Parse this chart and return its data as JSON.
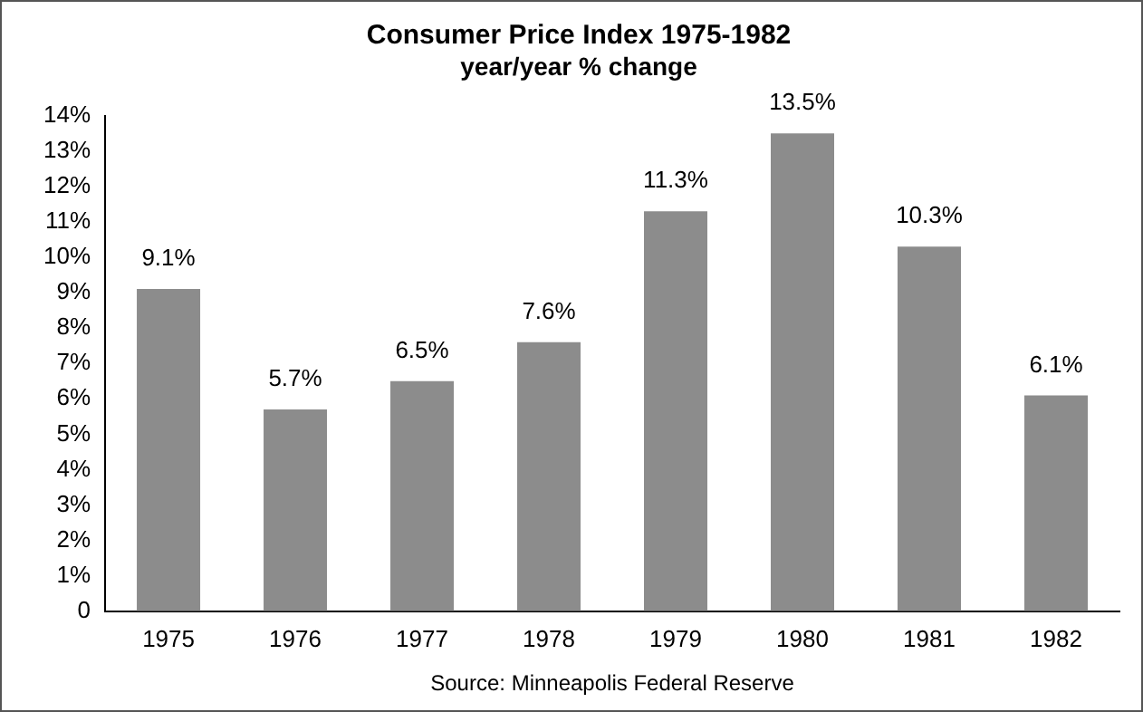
{
  "chart_data": {
    "type": "bar",
    "title": "Consumer Price Index 1975-1982",
    "subtitle": "year/year % change",
    "categories": [
      "1975",
      "1976",
      "1977",
      "1978",
      "1979",
      "1980",
      "1981",
      "1982"
    ],
    "values": [
      9.1,
      5.7,
      6.5,
      7.6,
      11.3,
      13.5,
      10.3,
      6.1
    ],
    "value_labels": [
      "9.1%",
      "5.7%",
      "6.5%",
      "7.6%",
      "11.3%",
      "13.5%",
      "10.3%",
      "6.1%"
    ],
    "color": "#8c8c8c",
    "ylim": [
      0,
      14
    ],
    "yticks": [
      0,
      {
        "value": 1,
        "label": "1%"
      },
      {
        "value": 2,
        "label": "2%"
      },
      {
        "value": 3,
        "label": "3%"
      },
      {
        "value": 4,
        "label": "4%"
      },
      {
        "value": 5,
        "label": "5%"
      },
      {
        "value": 6,
        "label": "6%"
      },
      {
        "value": 7,
        "label": "7%"
      },
      {
        "value": 8,
        "label": "8%"
      },
      {
        "value": 9,
        "label": "9%"
      },
      {
        "value": 10,
        "label": "10%"
      },
      {
        "value": 11,
        "label": "11%"
      },
      {
        "value": 12,
        "label": "12%"
      },
      {
        "value": 13,
        "label": "13%"
      },
      {
        "value": 14,
        "label": "14%"
      }
    ],
    "grid": false,
    "legend": false,
    "annotations": [
      "Source: Minneapolis Federal Reserve"
    ]
  }
}
